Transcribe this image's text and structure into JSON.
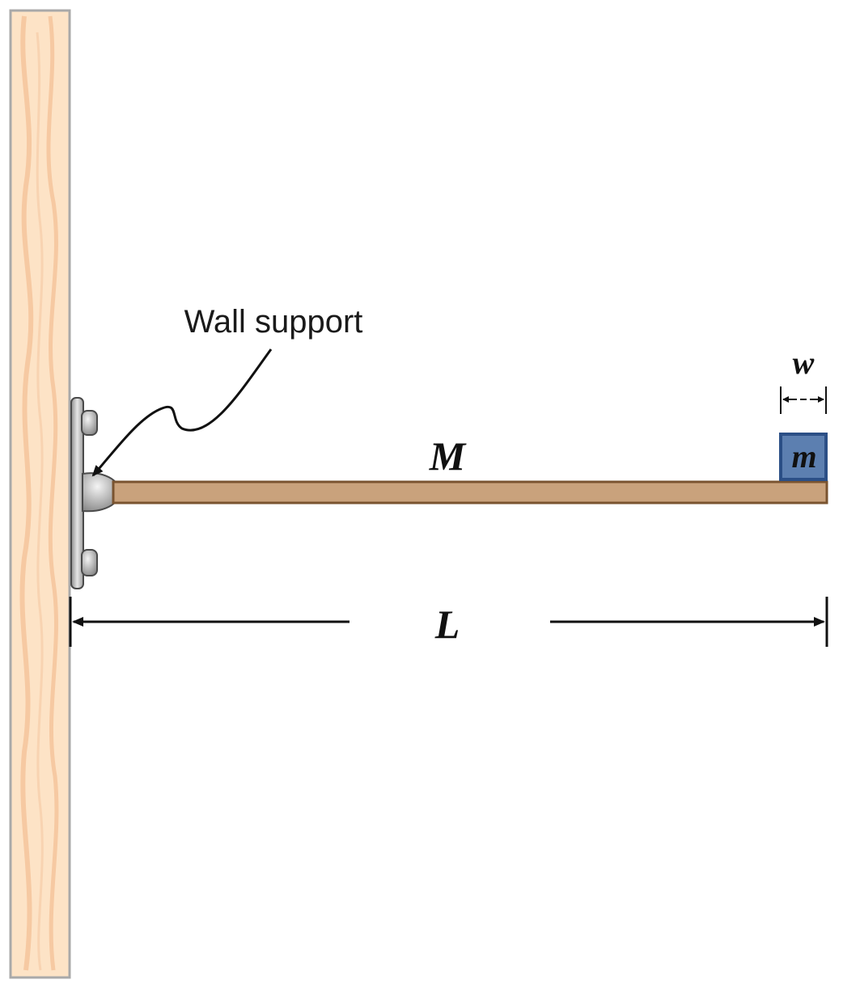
{
  "labels": {
    "wall_support": "Wall support",
    "rod_mass": "M",
    "block_mass": "m",
    "block_width": "w",
    "length": "L"
  },
  "colors": {
    "wall_fill": "#fde3c6",
    "wall_grain": "#f6c9a2",
    "wall_edge": "#a9a9a9",
    "rod_fill": "#c9a27c",
    "rod_edge": "#7a5430",
    "block_fill": "#5c7fb0",
    "block_edge": "#2b4f86",
    "bracket_fill": "#bcbcbc",
    "bracket_edge": "#4a4a4a",
    "line": "#111111"
  },
  "icons": {
    "wall": "wood-wall-icon",
    "bracket": "wall-bracket-icon",
    "pointer": "curved-arrow-icon"
  }
}
